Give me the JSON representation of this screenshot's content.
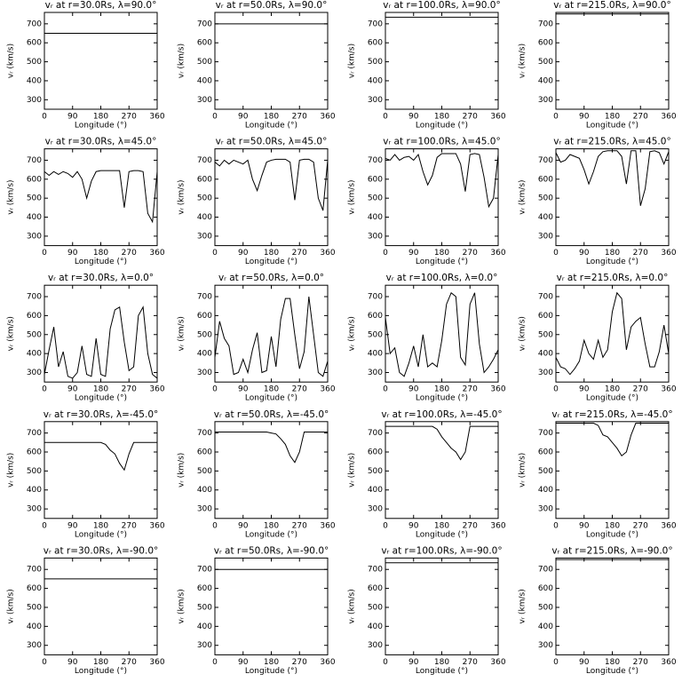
{
  "chart_data": [
    {
      "type": "line",
      "title": "vᵣ at r=30.0Rs, λ=90.0°",
      "xlabel": "Longitude (°)",
      "ylabel": "vᵣ (km/s)",
      "x": [
        0,
        360
      ],
      "values": [
        650,
        650
      ],
      "color": "#000000",
      "xlim": [
        0,
        360
      ],
      "ylim": [
        250,
        760
      ],
      "xticks": [
        0,
        90,
        180,
        270,
        360
      ],
      "yticks": [
        300,
        400,
        500,
        600,
        700
      ]
    },
    {
      "type": "line",
      "title": "vᵣ at r=50.0Rs, λ=90.0°",
      "xlabel": "Longitude (°)",
      "ylabel": "vᵣ (km/s)",
      "x": [
        0,
        360
      ],
      "values": [
        700,
        700
      ],
      "color": "#000000",
      "xlim": [
        0,
        360
      ],
      "ylim": [
        250,
        760
      ],
      "xticks": [
        0,
        90,
        180,
        270,
        360
      ],
      "yticks": [
        300,
        400,
        500,
        600,
        700
      ]
    },
    {
      "type": "line",
      "title": "vᵣ at r=100.0Rs, λ=90.0°",
      "xlabel": "Longitude (°)",
      "ylabel": "vᵣ (km/s)",
      "x": [
        0,
        360
      ],
      "values": [
        735,
        735
      ],
      "color": "#000000",
      "xlim": [
        0,
        360
      ],
      "ylim": [
        250,
        760
      ],
      "xticks": [
        0,
        90,
        180,
        270,
        360
      ],
      "yticks": [
        300,
        400,
        500,
        600,
        700
      ]
    },
    {
      "type": "line",
      "title": "vᵣ at r=215.0Rs, λ=90.0°",
      "xlabel": "Longitude (°)",
      "ylabel": "vᵣ (km/s)",
      "x": [
        0,
        360
      ],
      "values": [
        752,
        752
      ],
      "color": "#000000",
      "xlim": [
        0,
        360
      ],
      "ylim": [
        250,
        760
      ],
      "xticks": [
        0,
        90,
        180,
        270,
        360
      ],
      "yticks": [
        300,
        400,
        500,
        600,
        700
      ]
    },
    {
      "type": "line",
      "title": "vᵣ at r=30.0Rs, λ=45.0°",
      "xlabel": "Longitude (°)",
      "ylabel": "vᵣ (km/s)",
      "x": [
        0,
        15,
        30,
        45,
        60,
        75,
        90,
        105,
        120,
        135,
        150,
        165,
        180,
        195,
        210,
        225,
        240,
        255,
        270,
        285,
        300,
        315,
        330,
        345,
        360
      ],
      "values": [
        640,
        620,
        640,
        625,
        640,
        630,
        610,
        640,
        600,
        500,
        590,
        640,
        645,
        645,
        645,
        645,
        645,
        450,
        640,
        645,
        645,
        640,
        420,
        375,
        640
      ],
      "color": "#000000",
      "xlim": [
        0,
        360
      ],
      "ylim": [
        250,
        760
      ],
      "xticks": [
        0,
        90,
        180,
        270,
        360
      ],
      "yticks": [
        300,
        400,
        500,
        600,
        700
      ]
    },
    {
      "type": "line",
      "title": "vᵣ at r=50.0Rs, λ=45.0°",
      "xlabel": "Longitude (°)",
      "ylabel": "vᵣ (km/s)",
      "x": [
        0,
        15,
        30,
        45,
        60,
        75,
        90,
        105,
        120,
        135,
        150,
        165,
        180,
        195,
        210,
        225,
        240,
        255,
        270,
        285,
        300,
        315,
        330,
        345,
        360
      ],
      "values": [
        690,
        670,
        700,
        680,
        700,
        690,
        680,
        700,
        600,
        540,
        620,
        690,
        700,
        705,
        705,
        705,
        690,
        490,
        700,
        705,
        705,
        690,
        500,
        435,
        700
      ],
      "color": "#000000",
      "xlim": [
        0,
        360
      ],
      "ylim": [
        250,
        760
      ],
      "xticks": [
        0,
        90,
        180,
        270,
        360
      ],
      "yticks": [
        300,
        400,
        500,
        600,
        700
      ]
    },
    {
      "type": "line",
      "title": "vᵣ at r=100.0Rs, λ=45.0°",
      "xlabel": "Longitude (°)",
      "ylabel": "vᵣ (km/s)",
      "x": [
        0,
        15,
        30,
        45,
        60,
        75,
        90,
        105,
        120,
        135,
        150,
        165,
        180,
        195,
        210,
        225,
        240,
        255,
        270,
        285,
        300,
        315,
        330,
        345,
        360
      ],
      "values": [
        710,
        700,
        730,
        700,
        715,
        720,
        700,
        730,
        640,
        570,
        620,
        715,
        735,
        735,
        735,
        735,
        680,
        535,
        730,
        735,
        730,
        610,
        455,
        500,
        730
      ],
      "color": "#000000",
      "xlim": [
        0,
        360
      ],
      "ylim": [
        250,
        760
      ],
      "xticks": [
        0,
        90,
        180,
        270,
        360
      ],
      "yticks": [
        300,
        400,
        500,
        600,
        700
      ]
    },
    {
      "type": "line",
      "title": "vᵣ at r=215.0Rs, λ=45.0°",
      "xlabel": "Longitude (°)",
      "ylabel": "vᵣ (km/s)",
      "x": [
        0,
        15,
        30,
        45,
        60,
        75,
        90,
        105,
        120,
        135,
        150,
        165,
        180,
        195,
        210,
        225,
        240,
        255,
        270,
        285,
        300,
        315,
        330,
        345,
        360
      ],
      "values": [
        740,
        690,
        700,
        730,
        720,
        710,
        650,
        575,
        640,
        720,
        745,
        750,
        750,
        750,
        720,
        575,
        750,
        750,
        460,
        550,
        745,
        750,
        740,
        680,
        745
      ],
      "color": "#000000",
      "xlim": [
        0,
        360
      ],
      "ylim": [
        250,
        760
      ],
      "xticks": [
        0,
        90,
        180,
        270,
        360
      ],
      "yticks": [
        300,
        400,
        500,
        600,
        700
      ]
    },
    {
      "type": "line",
      "title": "vᵣ at r=30.0Rs, λ=0.0°",
      "xlabel": "Longitude (°)",
      "ylabel": "vᵣ (km/s)",
      "x": [
        0,
        15,
        30,
        45,
        60,
        75,
        90,
        105,
        120,
        135,
        150,
        165,
        180,
        195,
        210,
        225,
        240,
        255,
        270,
        285,
        300,
        315,
        330,
        345,
        360
      ],
      "values": [
        290,
        420,
        540,
        330,
        410,
        280,
        270,
        300,
        440,
        290,
        280,
        480,
        290,
        280,
        530,
        630,
        645,
        460,
        310,
        330,
        600,
        645,
        400,
        290,
        270
      ],
      "color": "#000000",
      "xlim": [
        0,
        360
      ],
      "ylim": [
        250,
        760
      ],
      "xticks": [
        0,
        90,
        180,
        270,
        360
      ],
      "yticks": [
        300,
        400,
        500,
        600,
        700
      ]
    },
    {
      "type": "line",
      "title": "vᵣ at r=50.0Rs, λ=0.0°",
      "xlabel": "Longitude (°)",
      "ylabel": "vᵣ (km/s)",
      "x": [
        0,
        15,
        30,
        45,
        60,
        75,
        90,
        105,
        120,
        135,
        150,
        165,
        180,
        195,
        210,
        225,
        240,
        255,
        270,
        285,
        300,
        315,
        330,
        345,
        360
      ],
      "values": [
        380,
        570,
        480,
        440,
        290,
        300,
        370,
        300,
        420,
        510,
        300,
        310,
        490,
        330,
        580,
        690,
        690,
        500,
        320,
        410,
        700,
        500,
        300,
        280,
        360
      ],
      "color": "#000000",
      "xlim": [
        0,
        360
      ],
      "ylim": [
        250,
        760
      ],
      "xticks": [
        0,
        90,
        180,
        270,
        360
      ],
      "yticks": [
        300,
        400,
        500,
        600,
        700
      ]
    },
    {
      "type": "line",
      "title": "vᵣ at r=100.0Rs, λ=0.0°",
      "xlabel": "Longitude (°)",
      "ylabel": "vᵣ (km/s)",
      "x": [
        0,
        15,
        30,
        45,
        60,
        75,
        90,
        105,
        120,
        135,
        150,
        165,
        180,
        195,
        210,
        225,
        240,
        255,
        270,
        285,
        300,
        315,
        330,
        345,
        360
      ],
      "values": [
        590,
        400,
        430,
        300,
        280,
        350,
        440,
        330,
        500,
        330,
        350,
        330,
        470,
        660,
        720,
        700,
        380,
        340,
        660,
        720,
        450,
        300,
        330,
        370,
        420
      ],
      "color": "#000000",
      "xlim": [
        0,
        360
      ],
      "ylim": [
        250,
        760
      ],
      "xticks": [
        0,
        90,
        180,
        270,
        360
      ],
      "yticks": [
        300,
        400,
        500,
        600,
        700
      ]
    },
    {
      "type": "line",
      "title": "vᵣ at r=215.0Rs, λ=0.0°",
      "xlabel": "Longitude (°)",
      "ylabel": "vᵣ (km/s)",
      "x": [
        0,
        15,
        30,
        45,
        60,
        75,
        90,
        105,
        120,
        135,
        150,
        165,
        180,
        195,
        210,
        225,
        240,
        255,
        270,
        285,
        300,
        315,
        330,
        345,
        360
      ],
      "values": [
        380,
        330,
        320,
        290,
        320,
        360,
        470,
        400,
        370,
        470,
        380,
        420,
        620,
        720,
        690,
        420,
        540,
        570,
        590,
        450,
        330,
        330,
        410,
        550,
        400
      ],
      "color": "#000000",
      "xlim": [
        0,
        360
      ],
      "ylim": [
        250,
        760
      ],
      "xticks": [
        0,
        90,
        180,
        270,
        360
      ],
      "yticks": [
        300,
        400,
        500,
        600,
        700
      ]
    },
    {
      "type": "line",
      "title": "vᵣ at r=30.0Rs, λ=-45.0°",
      "xlabel": "Longitude (°)",
      "ylabel": "vᵣ (km/s)",
      "x": [
        0,
        15,
        30,
        45,
        60,
        75,
        90,
        105,
        120,
        135,
        150,
        165,
        180,
        195,
        210,
        225,
        240,
        255,
        270,
        285,
        300,
        315,
        330,
        345,
        360
      ],
      "values": [
        650,
        650,
        650,
        650,
        650,
        650,
        650,
        650,
        650,
        650,
        650,
        650,
        650,
        640,
        610,
        590,
        540,
        505,
        590,
        650,
        650,
        650,
        650,
        650,
        650
      ],
      "color": "#000000",
      "xlim": [
        0,
        360
      ],
      "ylim": [
        250,
        760
      ],
      "xticks": [
        0,
        90,
        180,
        270,
        360
      ],
      "yticks": [
        300,
        400,
        500,
        600,
        700
      ]
    },
    {
      "type": "line",
      "title": "vᵣ at r=50.0Rs, λ=-45.0°",
      "xlabel": "Longitude (°)",
      "ylabel": "vᵣ (km/s)",
      "x": [
        0,
        15,
        30,
        45,
        60,
        75,
        90,
        105,
        120,
        135,
        150,
        165,
        180,
        195,
        210,
        225,
        240,
        255,
        270,
        285,
        300,
        315,
        330,
        345,
        360
      ],
      "values": [
        705,
        705,
        705,
        705,
        705,
        705,
        705,
        705,
        705,
        705,
        705,
        705,
        700,
        695,
        670,
        640,
        580,
        545,
        600,
        705,
        705,
        705,
        705,
        705,
        705
      ],
      "color": "#000000",
      "xlim": [
        0,
        360
      ],
      "ylim": [
        250,
        760
      ],
      "xticks": [
        0,
        90,
        180,
        270,
        360
      ],
      "yticks": [
        300,
        400,
        500,
        600,
        700
      ]
    },
    {
      "type": "line",
      "title": "vᵣ at r=100.0Rs, λ=-45.0°",
      "xlabel": "Longitude (°)",
      "ylabel": "vᵣ (km/s)",
      "x": [
        0,
        15,
        30,
        45,
        60,
        75,
        90,
        105,
        120,
        135,
        150,
        165,
        180,
        195,
        210,
        225,
        240,
        255,
        270,
        285,
        300,
        315,
        330,
        345,
        360
      ],
      "values": [
        735,
        735,
        735,
        735,
        735,
        735,
        735,
        735,
        735,
        735,
        735,
        720,
        680,
        650,
        620,
        600,
        560,
        600,
        735,
        735,
        735,
        735,
        735,
        735,
        735
      ],
      "color": "#000000",
      "xlim": [
        0,
        360
      ],
      "ylim": [
        250,
        760
      ],
      "xticks": [
        0,
        90,
        180,
        270,
        360
      ],
      "yticks": [
        300,
        400,
        500,
        600,
        700
      ]
    },
    {
      "type": "line",
      "title": "vᵣ at r=215.0Rs, λ=-45.0°",
      "xlabel": "Longitude (°)",
      "ylabel": "vᵣ (km/s)",
      "x": [
        0,
        15,
        30,
        45,
        60,
        75,
        90,
        105,
        120,
        135,
        150,
        165,
        180,
        195,
        210,
        225,
        240,
        255,
        270,
        285,
        300,
        315,
        330,
        345,
        360
      ],
      "values": [
        752,
        752,
        752,
        752,
        752,
        752,
        752,
        752,
        752,
        740,
        690,
        680,
        650,
        620,
        580,
        600,
        690,
        752,
        752,
        752,
        752,
        752,
        752,
        752,
        752
      ],
      "color": "#000000",
      "xlim": [
        0,
        360
      ],
      "ylim": [
        250,
        760
      ],
      "xticks": [
        0,
        90,
        180,
        270,
        360
      ],
      "yticks": [
        300,
        400,
        500,
        600,
        700
      ]
    },
    {
      "type": "line",
      "title": "vᵣ at r=30.0Rs, λ=-90.0°",
      "xlabel": "Longitude (°)",
      "ylabel": "vᵣ (km/s)",
      "x": [
        0,
        360
      ],
      "values": [
        650,
        650
      ],
      "color": "#000000",
      "xlim": [
        0,
        360
      ],
      "ylim": [
        250,
        760
      ],
      "xticks": [
        0,
        90,
        180,
        270,
        360
      ],
      "yticks": [
        300,
        400,
        500,
        600,
        700
      ]
    },
    {
      "type": "line",
      "title": "vᵣ at r=50.0Rs, λ=-90.0°",
      "xlabel": "Longitude (°)",
      "ylabel": "vᵣ (km/s)",
      "x": [
        0,
        360
      ],
      "values": [
        700,
        700
      ],
      "color": "#000000",
      "xlim": [
        0,
        360
      ],
      "ylim": [
        250,
        760
      ],
      "xticks": [
        0,
        90,
        180,
        270,
        360
      ],
      "yticks": [
        300,
        400,
        500,
        600,
        700
      ]
    },
    {
      "type": "line",
      "title": "vᵣ at r=100.0Rs, λ=-90.0°",
      "xlabel": "Longitude (°)",
      "ylabel": "vᵣ (km/s)",
      "x": [
        0,
        360
      ],
      "values": [
        735,
        735
      ],
      "color": "#000000",
      "xlim": [
        0,
        360
      ],
      "ylim": [
        250,
        760
      ],
      "xticks": [
        0,
        90,
        180,
        270,
        360
      ],
      "yticks": [
        300,
        400,
        500,
        600,
        700
      ]
    },
    {
      "type": "line",
      "title": "vᵣ at r=215.0Rs, λ=-90.0°",
      "xlabel": "Longitude (°)",
      "ylabel": "vᵣ (km/s)",
      "x": [
        0,
        360
      ],
      "values": [
        752,
        752
      ],
      "color": "#000000",
      "xlim": [
        0,
        360
      ],
      "ylim": [
        250,
        760
      ],
      "xticks": [
        0,
        90,
        180,
        270,
        360
      ],
      "yticks": [
        300,
        400,
        500,
        600,
        700
      ]
    }
  ]
}
